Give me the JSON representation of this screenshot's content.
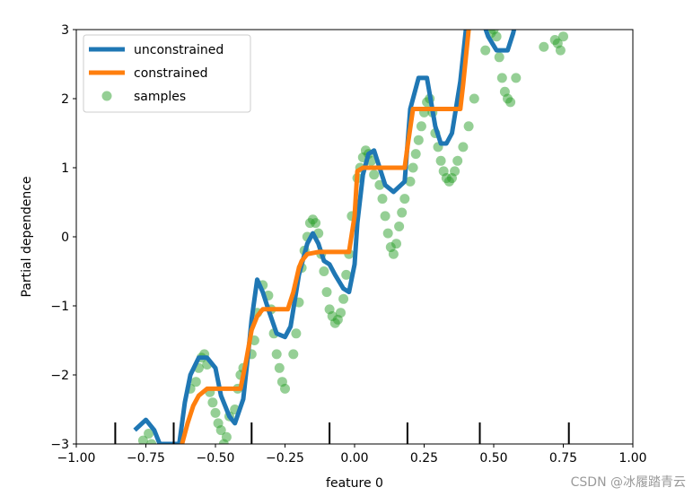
{
  "watermark": "CSDN @冰履踏青云",
  "chart_data": {
    "type": "line",
    "xlabel": "feature 0",
    "ylabel": "Partial dependence",
    "xlim": [
      -1.0,
      1.0
    ],
    "ylim": [
      -3,
      3
    ],
    "xticks": [
      -1.0,
      -0.75,
      -0.5,
      -0.25,
      0.0,
      0.25,
      0.5,
      0.75,
      1.0
    ],
    "xtick_labels": [
      "−1.00",
      "−0.75",
      "−0.50",
      "−0.25",
      "0.00",
      "0.25",
      "0.50",
      "0.75",
      "1.00"
    ],
    "yticks": [
      -3,
      -2,
      -1,
      0,
      1,
      2,
      3
    ],
    "ytick_labels": [
      "−3",
      "−2",
      "−1",
      "0",
      "1",
      "2",
      "3"
    ],
    "legend": {
      "position": "upper left",
      "entries": [
        "unconstrained",
        "constrained",
        "samples"
      ]
    },
    "deciles": [
      -0.86,
      -0.65,
      -0.37,
      -0.09,
      0.19,
      0.45,
      0.77
    ],
    "colors": {
      "unconstrained": "#1f77b4",
      "constrained": "#ff7f0e",
      "samples": "#2ca02c",
      "rug": "#000000"
    },
    "series": [
      {
        "name": "unconstrained",
        "x": [
          -0.79,
          -0.75,
          -0.72,
          -0.7,
          -0.63,
          -0.61,
          -0.59,
          -0.56,
          -0.53,
          -0.5,
          -0.48,
          -0.45,
          -0.43,
          -0.4,
          -0.38,
          -0.37,
          -0.35,
          -0.33,
          -0.31,
          -0.28,
          -0.25,
          -0.23,
          -0.2,
          -0.17,
          -0.15,
          -0.13,
          -0.11,
          -0.09,
          -0.07,
          -0.04,
          -0.02,
          0.0,
          0.01,
          0.03,
          0.05,
          0.07,
          0.09,
          0.11,
          0.14,
          0.18,
          0.2,
          0.23,
          0.26,
          0.29,
          0.31,
          0.33,
          0.35,
          0.38,
          0.4,
          0.42,
          0.45,
          0.48,
          0.51,
          0.55,
          0.57,
          0.59,
          0.61
        ],
        "y": [
          -2.8,
          -2.65,
          -2.8,
          -3.0,
          -3.0,
          -2.4,
          -2.0,
          -1.75,
          -1.75,
          -1.9,
          -2.3,
          -2.6,
          -2.7,
          -2.35,
          -1.6,
          -1.2,
          -0.62,
          -0.8,
          -1.05,
          -1.4,
          -1.45,
          -1.3,
          -0.55,
          -0.1,
          0.05,
          -0.1,
          -0.35,
          -0.4,
          -0.55,
          -0.75,
          -0.8,
          -0.4,
          0.2,
          0.9,
          1.2,
          1.25,
          1.0,
          0.75,
          0.65,
          0.8,
          1.85,
          2.3,
          2.3,
          1.6,
          1.35,
          1.35,
          1.5,
          2.25,
          3.0,
          3.3,
          3.25,
          2.9,
          2.7,
          2.7,
          2.95,
          3.3,
          3.5
        ]
      },
      {
        "name": "constrained",
        "x": [
          -0.62,
          -0.6,
          -0.58,
          -0.56,
          -0.53,
          -0.49,
          -0.46,
          -0.43,
          -0.41,
          -0.39,
          -0.37,
          -0.35,
          -0.33,
          -0.3,
          -0.25,
          -0.24,
          -0.22,
          -0.2,
          -0.19,
          -0.17,
          -0.13,
          -0.1,
          -0.09,
          -0.08,
          -0.04,
          -0.02,
          0.0,
          0.01,
          0.03,
          0.08,
          0.15,
          0.18,
          0.19,
          0.21,
          0.3,
          0.37,
          0.38,
          0.39,
          0.41,
          0.43,
          0.45
        ],
        "y": [
          -3.0,
          -2.7,
          -2.45,
          -2.3,
          -2.2,
          -2.2,
          -2.2,
          -2.2,
          -2.2,
          -1.8,
          -1.35,
          -1.15,
          -1.05,
          -1.05,
          -1.05,
          -1.05,
          -0.8,
          -0.45,
          -0.35,
          -0.25,
          -0.22,
          -0.22,
          -0.22,
          -0.22,
          -0.22,
          -0.22,
          0.3,
          0.95,
          1.0,
          1.0,
          1.0,
          1.0,
          1.3,
          1.85,
          1.85,
          1.85,
          1.85,
          2.2,
          3.0,
          3.3,
          3.5
        ]
      },
      {
        "name": "samples",
        "x": [
          -0.76,
          -0.74,
          -0.73,
          -0.59,
          -0.57,
          -0.56,
          -0.55,
          -0.54,
          -0.53,
          -0.52,
          -0.51,
          -0.5,
          -0.49,
          -0.48,
          -0.47,
          -0.46,
          -0.45,
          -0.43,
          -0.42,
          -0.41,
          -0.4,
          -0.37,
          -0.36,
          -0.35,
          -0.33,
          -0.31,
          -0.3,
          -0.29,
          -0.28,
          -0.27,
          -0.26,
          -0.25,
          -0.22,
          -0.21,
          -0.2,
          -0.19,
          -0.18,
          -0.17,
          -0.16,
          -0.15,
          -0.14,
          -0.13,
          -0.12,
          -0.11,
          -0.1,
          -0.09,
          -0.08,
          -0.07,
          -0.06,
          -0.05,
          -0.04,
          -0.03,
          -0.02,
          -0.01,
          0.01,
          0.02,
          0.03,
          0.04,
          0.05,
          0.06,
          0.07,
          0.09,
          0.1,
          0.11,
          0.12,
          0.13,
          0.14,
          0.15,
          0.16,
          0.17,
          0.18,
          0.2,
          0.21,
          0.22,
          0.23,
          0.24,
          0.25,
          0.26,
          0.27,
          0.28,
          0.29,
          0.3,
          0.31,
          0.32,
          0.33,
          0.34,
          0.35,
          0.36,
          0.37,
          0.39,
          0.41,
          0.43,
          0.47,
          0.49,
          0.5,
          0.51,
          0.52,
          0.53,
          0.54,
          0.55,
          0.56,
          0.58,
          0.68,
          0.72,
          0.73,
          0.74,
          0.75
        ],
        "y": [
          -2.95,
          -2.85,
          -3.0,
          -2.2,
          -2.1,
          -1.9,
          -1.75,
          -1.7,
          -1.85,
          -2.25,
          -2.4,
          -2.55,
          -2.7,
          -2.8,
          -3.0,
          -2.9,
          -2.6,
          -2.5,
          -2.2,
          -2.0,
          -1.9,
          -1.7,
          -1.5,
          -1.1,
          -0.7,
          -0.85,
          -1.05,
          -1.4,
          -1.7,
          -1.9,
          -2.1,
          -2.2,
          -1.7,
          -1.4,
          -0.95,
          -0.45,
          -0.2,
          0.0,
          0.2,
          0.25,
          0.2,
          0.05,
          -0.25,
          -0.5,
          -0.8,
          -1.05,
          -1.15,
          -1.25,
          -1.2,
          -1.1,
          -0.9,
          -0.55,
          -0.25,
          0.3,
          0.85,
          1.0,
          1.15,
          1.25,
          1.2,
          1.1,
          0.9,
          0.75,
          0.55,
          0.3,
          0.05,
          -0.15,
          -0.25,
          -0.1,
          0.15,
          0.35,
          0.55,
          0.8,
          1.0,
          1.2,
          1.4,
          1.6,
          1.8,
          1.95,
          2.0,
          1.8,
          1.5,
          1.3,
          1.1,
          0.95,
          0.85,
          0.8,
          0.85,
          0.95,
          1.1,
          1.3,
          1.6,
          2.0,
          2.7,
          2.95,
          3.0,
          2.9,
          2.6,
          2.3,
          2.1,
          2.0,
          1.95,
          2.3,
          2.75,
          2.85,
          2.8,
          2.7,
          2.9
        ]
      }
    ]
  }
}
